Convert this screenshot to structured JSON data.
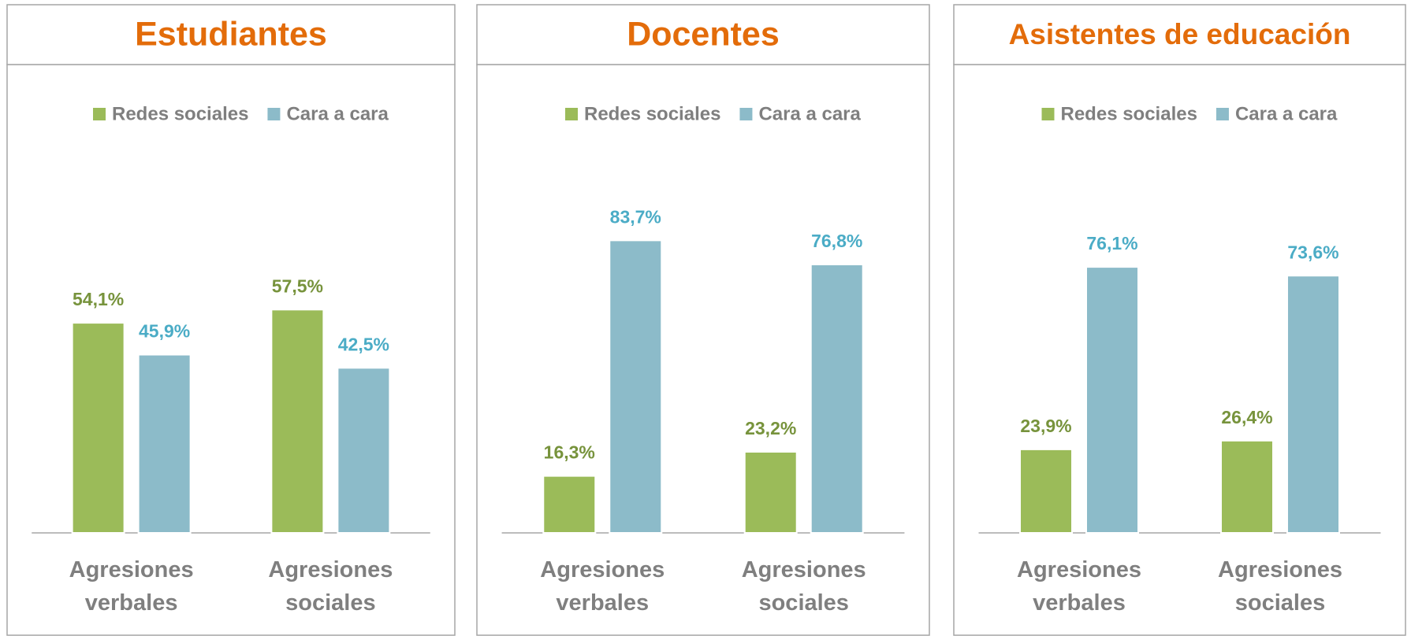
{
  "chart_data": [
    {
      "type": "bar",
      "title": "Estudiantes",
      "categories": [
        "Agresiones verbales",
        "Agresiones sociales"
      ],
      "series": [
        {
          "name": "Redes sociales",
          "color": "#9bbb59",
          "label_color": "#77933c",
          "values": [
            54.1,
            57.5
          ],
          "value_labels": [
            "54,1%",
            "57,5%"
          ]
        },
        {
          "name": "Cara a cara",
          "color": "#8cbbc9",
          "label_color": "#4bacc6",
          "values": [
            45.9,
            42.5
          ],
          "value_labels": [
            "45,9%",
            "42,5%"
          ]
        }
      ],
      "ylim": [
        0,
        90
      ]
    },
    {
      "type": "bar",
      "title": "Docentes",
      "categories": [
        "Agresiones verbales",
        "Agresiones sociales"
      ],
      "series": [
        {
          "name": "Redes sociales",
          "color": "#9bbb59",
          "label_color": "#77933c",
          "values": [
            16.3,
            23.2
          ],
          "value_labels": [
            "16,3%",
            "23,2%"
          ]
        },
        {
          "name": "Cara a cara",
          "color": "#8cbbc9",
          "label_color": "#4bacc6",
          "values": [
            83.7,
            76.8
          ],
          "value_labels": [
            "83,7%",
            "76,8%"
          ]
        }
      ],
      "ylim": [
        0,
        100
      ]
    },
    {
      "type": "bar",
      "title": "Asistentes de educación",
      "categories": [
        "Agresiones verbales",
        "Agresiones sociales"
      ],
      "series": [
        {
          "name": "Redes sociales",
          "color": "#9bbb59",
          "label_color": "#77933c",
          "values": [
            23.9,
            26.4
          ],
          "value_labels": [
            "23,9%",
            "26,4%"
          ]
        },
        {
          "name": "Cara a cara",
          "color": "#8cbbc9",
          "label_color": "#4bacc6",
          "values": [
            76.1,
            73.6
          ],
          "value_labels": [
            "76,1%",
            "73,6%"
          ]
        }
      ],
      "ylim": [
        0,
        100
      ]
    }
  ]
}
